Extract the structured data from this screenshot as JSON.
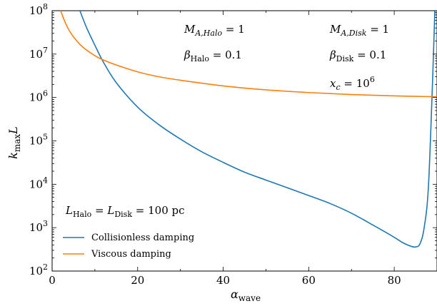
{
  "chart_data": {
    "type": "line",
    "xlabel": "α_wave",
    "ylabel": "k_max L",
    "xlim": [
      0,
      90
    ],
    "ylim": [
      100,
      100000000
    ],
    "yscale": "log",
    "x_ticks": [
      0,
      20,
      40,
      60,
      80
    ],
    "x_tick_labels": [
      "0",
      "20",
      "40",
      "60",
      "80"
    ],
    "y_ticks": [
      100,
      1000,
      10000,
      100000,
      1000000,
      10000000,
      100000000
    ],
    "y_tick_bases": [
      "10",
      "10",
      "10",
      "10",
      "10",
      "10",
      "10"
    ],
    "y_tick_exps": [
      "2",
      "3",
      "4",
      "5",
      "6",
      "7",
      "8"
    ],
    "grid": false,
    "legend_position": "lower-left",
    "colors": {
      "collisionless": "#1f77b4",
      "viscous": "#ff7f0e"
    },
    "series": [
      {
        "name": "Collisionless damping",
        "x": [
          6.5,
          8,
          10,
          12,
          15,
          20,
          25,
          30,
          35,
          40,
          45,
          50,
          55,
          60,
          65,
          70,
          75,
          80,
          82,
          84,
          85,
          86,
          87,
          88,
          89,
          89.5
        ],
        "y": [
          100000000,
          42000000,
          16000000,
          6500000,
          2200000,
          600000,
          235000,
          110000,
          56000,
          32000,
          19000,
          12500,
          8300,
          5500,
          3600,
          2150,
          1150,
          600,
          450,
          370,
          360,
          420,
          1000,
          9000,
          3000000,
          100000000
        ]
      },
      {
        "name": "Viscous damping",
        "x": [
          2,
          3,
          4,
          5,
          7,
          10,
          12,
          15,
          20,
          25,
          30,
          40,
          50,
          60,
          70,
          80,
          90
        ],
        "y": [
          100000000,
          55000000,
          35000000,
          25000000,
          15000000,
          9200000,
          7300000,
          5600000,
          3900000,
          3000000,
          2500000,
          1850000,
          1500000,
          1300000,
          1170000,
          1090000,
          1040000
        ]
      }
    ],
    "annotations": {
      "ma_halo": {
        "base": "M",
        "sub": "A,Halo",
        "rest": " = 1"
      },
      "ma_disk": {
        "base": "M",
        "sub": "A,Disk",
        "rest": " = 1"
      },
      "beta_halo": {
        "base": "β",
        "sub": "Halo",
        "rest": " = 0.1"
      },
      "beta_disk": {
        "base": "β",
        "sub": "Disk",
        "rest": " = 0.1"
      },
      "xc": {
        "base": "x",
        "sub": "c",
        "rest": " = 10",
        "sup": "6"
      },
      "length": {
        "base1": "L",
        "sub1": "Halo",
        "mid": " = ",
        "base2": "L",
        "sub2": "Disk",
        "rest": " = 100 pc"
      }
    }
  }
}
